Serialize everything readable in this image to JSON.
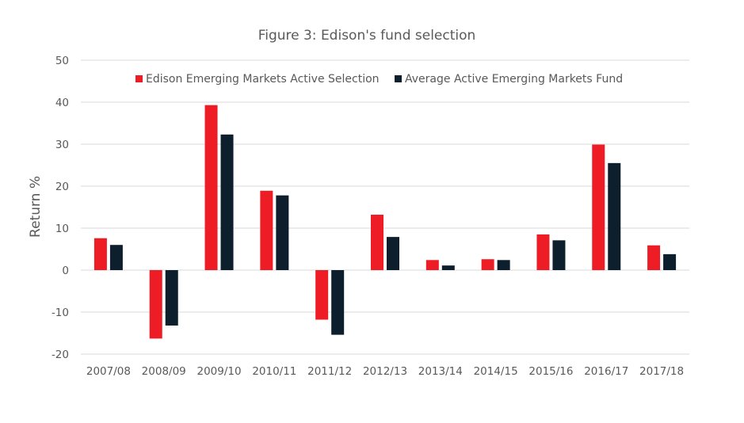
{
  "chart_data": {
    "type": "bar",
    "title": "Figure 3: Edison's fund selection",
    "xlabel": "",
    "ylabel": "Return %",
    "ylim": [
      -20,
      50
    ],
    "yticks": [
      50,
      40,
      30,
      20,
      10,
      0,
      -10,
      -20
    ],
    "grid": true,
    "legend_position": "top",
    "categories": [
      "2007/08",
      "2008/09",
      "2009/10",
      "2010/11",
      "2011/12",
      "2012/13",
      "2013/14",
      "2014/15",
      "2015/16",
      "2016/17",
      "2017/18"
    ],
    "series": [
      {
        "name": "Edison Emerging Markets Active Selection",
        "color": "#ee1c25",
        "values": [
          7.6,
          -16.3,
          39.3,
          18.9,
          -11.8,
          13.2,
          2.4,
          2.6,
          8.5,
          29.9,
          5.9
        ]
      },
      {
        "name": "Average Active Emerging Markets Fund",
        "color": "#0d1f2d",
        "values": [
          6.0,
          -13.2,
          32.3,
          17.8,
          -15.4,
          7.9,
          1.1,
          2.4,
          7.1,
          25.5,
          3.8
        ]
      }
    ]
  }
}
